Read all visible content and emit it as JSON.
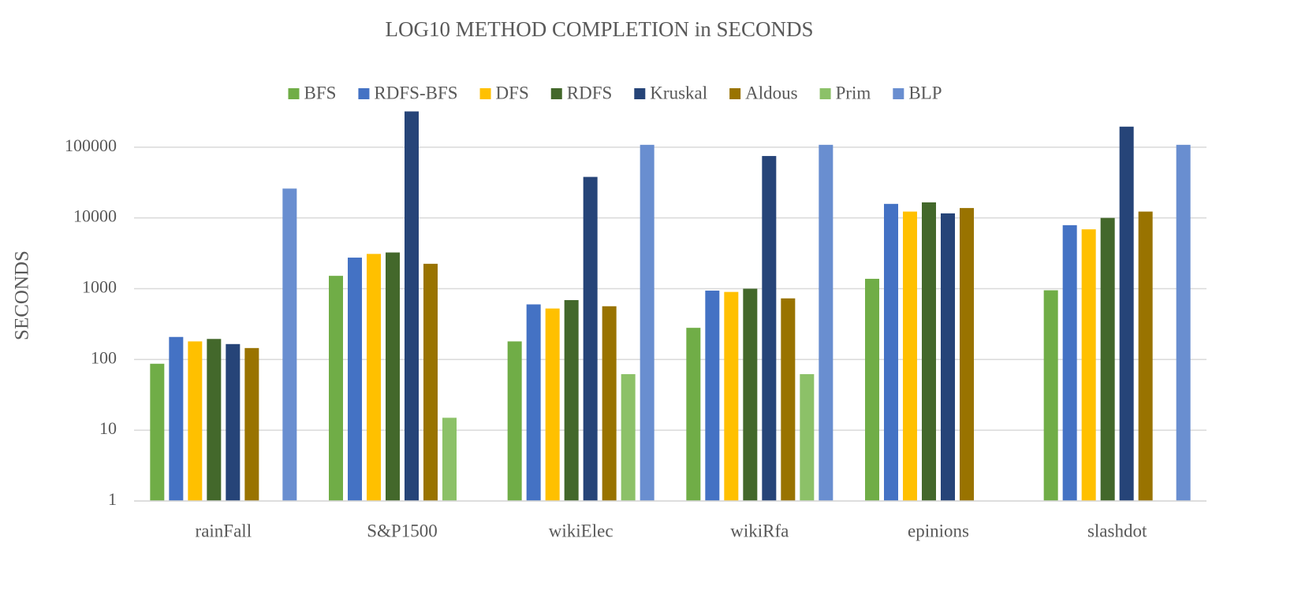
{
  "chart_data": {
    "type": "bar",
    "title": "LOG10 METHOD COMPLETION in SECONDS",
    "y_label": "SECONDS",
    "log_scale": true,
    "grid": true,
    "legend": "top",
    "categories": [
      "rainFall",
      "S&P1500",
      "wikiElec",
      "wikiRfa",
      "epinions",
      "slashdot"
    ],
    "series": [
      {
        "name": "BFS",
        "color": "#70ad47",
        "values": [
          87,
          1520,
          180,
          280,
          1380,
          950
        ]
      },
      {
        "name": "RDFS-BFS",
        "color": "#4472c4",
        "values": [
          208,
          2750,
          600,
          940,
          15800,
          7900
        ]
      },
      {
        "name": "DFS",
        "color": "#ffc000",
        "values": [
          180,
          3100,
          525,
          900,
          12300,
          6900
        ]
      },
      {
        "name": "RDFS",
        "color": "#43682b",
        "values": [
          195,
          3250,
          690,
          1000,
          16600,
          10000
        ]
      },
      {
        "name": "Kruskal",
        "color": "#264478",
        "values": [
          165,
          320000,
          38000,
          75000,
          11600,
          195000
        ]
      },
      {
        "name": "Aldous",
        "color": "#997300",
        "values": [
          145,
          2250,
          565,
          730,
          13800,
          12300
        ]
      },
      {
        "name": "Prim",
        "color": "#8cc168",
        "values": [
          null,
          15,
          62,
          62,
          null,
          null
        ]
      },
      {
        "name": "BLP",
        "color": "#698ed0",
        "values": [
          26000,
          null,
          108000,
          108000,
          null,
          108000
        ]
      }
    ],
    "ylim": [
      1,
      1000000
    ],
    "yticks": [
      1,
      10,
      100,
      1000,
      10000,
      100000
    ]
  }
}
